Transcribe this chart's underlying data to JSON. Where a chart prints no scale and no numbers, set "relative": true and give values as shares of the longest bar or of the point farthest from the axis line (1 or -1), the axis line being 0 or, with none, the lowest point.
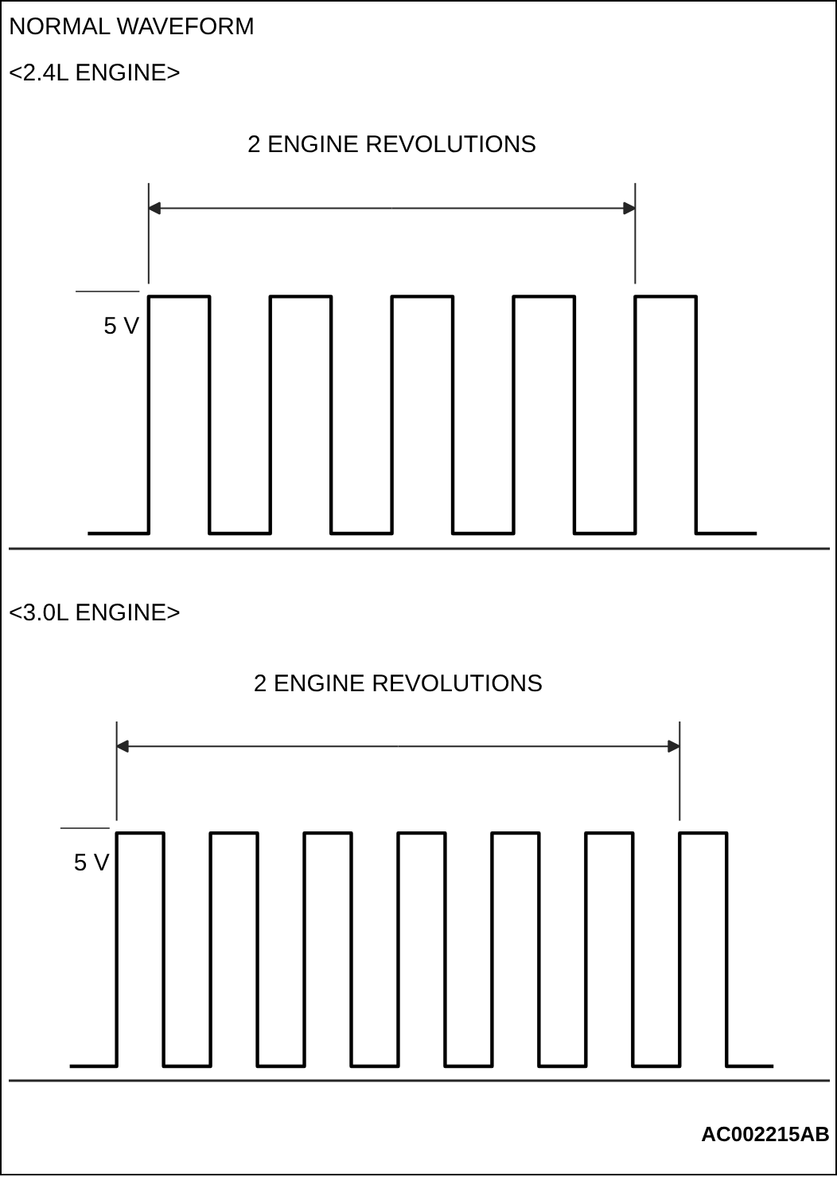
{
  "chart_data": [
    {
      "type": "step",
      "title": "NORMAL WAVEFORM",
      "subtitle": "<2.4L ENGINE>",
      "relative": true,
      "categories": [
        null,
        null,
        null,
        null,
        null,
        null,
        null,
        null,
        null,
        null,
        null,
        null
      ],
      "series": [
        {
          "color": "#000000",
          "values": [
            0.06,
            1,
            0.06,
            1,
            0.06,
            1,
            0.06,
            1,
            0.06,
            1,
            0.06,
            0.06
          ]
        }
      ],
      "annotations": [
        "2 ENGINE REVOLUTIONS",
        "5 V"
      ]
    },
    {
      "type": "step",
      "title": "<3.0L ENGINE>",
      "relative": true,
      "categories": [
        null,
        null,
        null,
        null,
        null,
        null,
        null,
        null,
        null,
        null,
        null,
        null,
        null,
        null,
        null,
        null
      ],
      "series": [
        {
          "color": "#000000",
          "values": [
            0.06,
            1,
            0.06,
            1,
            0.06,
            1,
            0.06,
            1,
            0.06,
            1,
            0.06,
            1,
            0.06,
            1,
            0.06,
            0.06
          ]
        }
      ],
      "annotations": [
        "2 ENGINE REVOLUTIONS",
        "5 V",
        "AC002215AB"
      ]
    }
  ]
}
